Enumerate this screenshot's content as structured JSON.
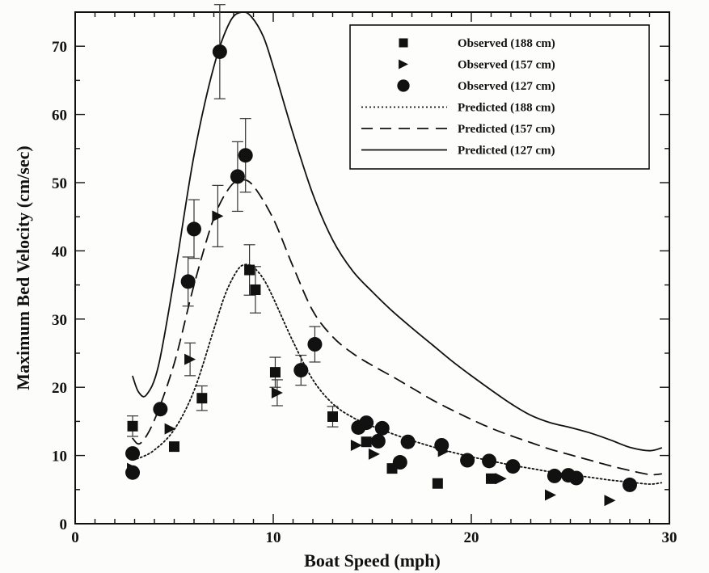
{
  "chart_data": {
    "type": "scatter",
    "xlabel": "Boat Speed (mph)",
    "ylabel": "Maximum Bed Velocity (cm/sec)",
    "xlim": [
      0,
      30
    ],
    "ylim": [
      0,
      75
    ],
    "x_ticks": [
      0,
      10,
      20,
      30
    ],
    "y_ticks": [
      0,
      10,
      20,
      30,
      40,
      50,
      60,
      70
    ],
    "grid": false,
    "legend_position": "top-right",
    "observed": [
      {
        "name": "Observed (188 cm)",
        "marker": "square",
        "points": [
          {
            "x": 2.9,
            "y": 14.3,
            "err": 1.5
          },
          {
            "x": 5.0,
            "y": 11.3
          },
          {
            "x": 6.4,
            "y": 18.4,
            "err": 1.8
          },
          {
            "x": 8.8,
            "y": 37.2,
            "err": 3.7
          },
          {
            "x": 9.1,
            "y": 34.3,
            "err": 3.4
          },
          {
            "x": 10.1,
            "y": 22.2,
            "err": 2.2
          },
          {
            "x": 13.0,
            "y": 15.7,
            "err": 1.5
          },
          {
            "x": 14.7,
            "y": 12.0
          },
          {
            "x": 16.0,
            "y": 8.1
          },
          {
            "x": 18.3,
            "y": 5.9
          },
          {
            "x": 21.0,
            "y": 6.6
          }
        ]
      },
      {
        "name": "Observed (157 cm)",
        "marker": "triangle-right",
        "points": [
          {
            "x": 2.9,
            "y": 8.1
          },
          {
            "x": 4.8,
            "y": 13.9
          },
          {
            "x": 5.8,
            "y": 24.1,
            "err": 2.4
          },
          {
            "x": 7.2,
            "y": 45.1,
            "err": 4.5
          },
          {
            "x": 10.2,
            "y": 19.2,
            "err": 1.9
          },
          {
            "x": 14.2,
            "y": 11.5
          },
          {
            "x": 15.1,
            "y": 10.2
          },
          {
            "x": 18.6,
            "y": 10.6
          },
          {
            "x": 21.5,
            "y": 6.6
          },
          {
            "x": 24.0,
            "y": 4.2
          },
          {
            "x": 27.0,
            "y": 3.4
          }
        ]
      },
      {
        "name": "Observed (127 cm)",
        "marker": "circle",
        "points": [
          {
            "x": 2.9,
            "y": 10.3
          },
          {
            "x": 2.9,
            "y": 7.5
          },
          {
            "x": 4.3,
            "y": 16.8
          },
          {
            "x": 5.7,
            "y": 35.5,
            "err": 3.6
          },
          {
            "x": 6.0,
            "y": 43.2,
            "err": 4.3
          },
          {
            "x": 7.3,
            "y": 69.2,
            "err": 6.9
          },
          {
            "x": 8.2,
            "y": 50.9,
            "err": 5.1
          },
          {
            "x": 8.6,
            "y": 54.0,
            "err": 5.4
          },
          {
            "x": 11.4,
            "y": 22.5,
            "err": 2.2
          },
          {
            "x": 12.1,
            "y": 26.3,
            "err": 2.6
          },
          {
            "x": 14.3,
            "y": 14.1
          },
          {
            "x": 14.7,
            "y": 14.8
          },
          {
            "x": 15.3,
            "y": 12.1
          },
          {
            "x": 15.5,
            "y": 14.0
          },
          {
            "x": 16.4,
            "y": 9.0
          },
          {
            "x": 16.8,
            "y": 12.0
          },
          {
            "x": 18.5,
            "y": 11.5
          },
          {
            "x": 19.8,
            "y": 9.3
          },
          {
            "x": 20.9,
            "y": 9.2
          },
          {
            "x": 22.1,
            "y": 8.4
          },
          {
            "x": 24.2,
            "y": 7.0
          },
          {
            "x": 24.9,
            "y": 7.1
          },
          {
            "x": 25.3,
            "y": 6.7
          },
          {
            "x": 28.0,
            "y": 5.7
          }
        ]
      }
    ],
    "predicted": [
      {
        "name": "Predicted (188 cm)",
        "dash": "dotted",
        "x": [
          2.9,
          3.2,
          4.0,
          5.0,
          6.0,
          7.0,
          7.6,
          8.2,
          8.6,
          9.0,
          9.5,
          10.0,
          11.0,
          12.0,
          13.0,
          14.0,
          15.0,
          16.0,
          17.0,
          18.0,
          19.0,
          20.0,
          21.0,
          22.0,
          23.0,
          24.0,
          25.0,
          26.0,
          27.0,
          28.0,
          29.0,
          29.6
        ],
        "y": [
          9.6,
          9.6,
          10.8,
          13.8,
          19.5,
          28.5,
          33.8,
          37.2,
          38.0,
          37.6,
          35.9,
          33.1,
          26.7,
          21.1,
          17.6,
          15.6,
          14.3,
          13.2,
          12.2,
          11.3,
          10.5,
          9.8,
          9.2,
          8.6,
          8.1,
          7.6,
          7.2,
          6.8,
          6.4,
          6.1,
          5.8,
          6.0
        ]
      },
      {
        "name": "Predicted (157 cm)",
        "dash": "dashed",
        "x": [
          2.9,
          3.3,
          4.0,
          5.0,
          6.0,
          7.0,
          7.8,
          8.4,
          9.0,
          10.0,
          11.0,
          12.0,
          13.0,
          14.0,
          15.0,
          16.0,
          17.0,
          18.0,
          19.0,
          20.0,
          21.0,
          22.0,
          23.0,
          24.0,
          25.0,
          26.0,
          27.0,
          28.0,
          29.0,
          29.6
        ],
        "y": [
          12.5,
          11.8,
          15.2,
          23.5,
          35.0,
          44.8,
          49.3,
          50.4,
          49.5,
          44.7,
          37.7,
          31.2,
          27.4,
          25.0,
          23.2,
          21.6,
          19.9,
          18.2,
          16.7,
          15.3,
          14.0,
          12.9,
          11.9,
          10.9,
          10.1,
          9.3,
          8.5,
          7.8,
          7.2,
          7.3
        ]
      },
      {
        "name": "Predicted (127 cm)",
        "dash": "solid",
        "x": [
          2.9,
          3.2,
          3.6,
          4.2,
          5.0,
          6.0,
          7.0,
          7.8,
          8.4,
          8.9,
          9.5,
          10.0,
          11.0,
          12.0,
          13.0,
          14.0,
          15.0,
          16.0,
          17.0,
          18.0,
          19.0,
          20.0,
          21.0,
          22.0,
          23.0,
          24.0,
          25.0,
          26.0,
          27.0,
          28.0,
          29.0,
          29.6
        ],
        "y": [
          21.6,
          19.3,
          18.9,
          23.1,
          36.0,
          54.0,
          67.0,
          73.5,
          75.0,
          74.3,
          71.4,
          67.0,
          57.2,
          48.3,
          41.6,
          37.1,
          34.0,
          31.2,
          28.7,
          26.3,
          23.9,
          21.7,
          19.6,
          17.6,
          15.9,
          14.8,
          14.1,
          13.3,
          12.3,
          11.2,
          10.7,
          11.1
        ]
      }
    ]
  }
}
